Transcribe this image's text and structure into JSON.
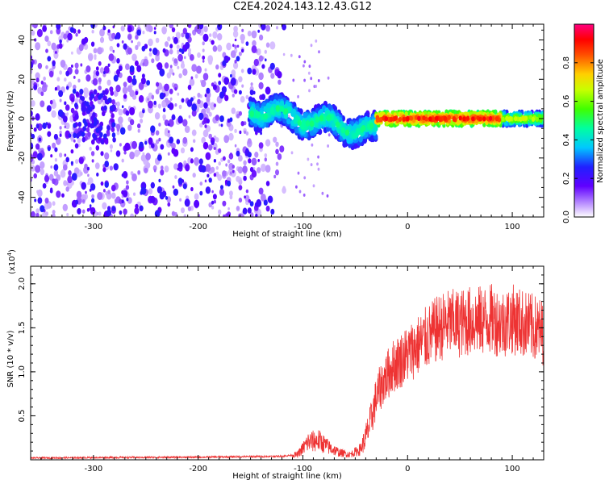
{
  "title": "C2E4.2024.143.12.43.G12",
  "colors": {
    "snr_line": "#ee3333",
    "spectrogram_base": "#7a2cff",
    "frame": "#000000"
  },
  "chart_data": [
    {
      "type": "heatmap",
      "title": "C2E4.2024.143.12.43.G12",
      "xlabel": "Height of straight line (km)",
      "ylabel": "Frequency (Hz)",
      "xlim": [
        -360,
        130
      ],
      "ylim": [
        -50,
        48
      ],
      "x_ticks": [
        "-300",
        "-200",
        "-100",
        "0",
        "100"
      ],
      "y_ticks": [
        "-40",
        "-20",
        "0",
        "20",
        "40"
      ],
      "colorbar": {
        "label": "Normalized spectral amplitude",
        "range": [
          0,
          1
        ],
        "ticks": [
          "0.0",
          "0.2",
          "0.4",
          "0.6",
          "0.8"
        ],
        "colormap": [
          "#ffffff",
          "#8000ff",
          "#2020ff",
          "#00c8ff",
          "#00ff80",
          "#80ff00",
          "#ffd000",
          "#ff5000",
          "#ff0000",
          "#ff0080"
        ]
      },
      "features": [
        {
          "name": "broadband noise region",
          "x_range": [
            -360,
            -115
          ],
          "freq_range": [
            -50,
            48
          ],
          "amplitude": 0.15
        },
        {
          "name": "diffuse doppler track",
          "x_range": [
            -150,
            -30
          ],
          "freq_center": [
            5,
            -8
          ],
          "amplitude": 0.4
        },
        {
          "name": "carrier line",
          "x_range": [
            -30,
            130
          ],
          "freq_center": 0,
          "amplitude": 0.9
        }
      ]
    },
    {
      "type": "line",
      "xlabel": "Height of straight line (km)",
      "ylabel": "SNR (10 * v/v)",
      "y_multiplier_label": "(x10",
      "y_multiplier_exp": "4",
      "y_multiplier_tail": ")",
      "xlim": [
        -360,
        130
      ],
      "ylim": [
        0,
        2.2
      ],
      "x_ticks": [
        "-300",
        "-200",
        "-100",
        "0",
        "100"
      ],
      "y_ticks": [
        "0.5",
        "1.0",
        "1.5",
        "2.0"
      ],
      "series_envelope": {
        "x": [
          -360,
          -300,
          -200,
          -120,
          -105,
          -95,
          -85,
          -75,
          -65,
          -55,
          -45,
          -40,
          -35,
          -30,
          -25,
          -20,
          -15,
          -10,
          -5,
          0,
          10,
          20,
          30,
          40,
          50,
          60,
          70,
          80,
          90,
          100,
          110,
          120,
          130
        ],
        "y": [
          0.02,
          0.025,
          0.03,
          0.04,
          0.06,
          0.2,
          0.22,
          0.14,
          0.08,
          0.06,
          0.12,
          0.25,
          0.45,
          0.7,
          0.85,
          0.95,
          1.05,
          1.1,
          1.15,
          1.2,
          1.3,
          1.4,
          1.5,
          1.55,
          1.55,
          1.58,
          1.58,
          1.6,
          1.55,
          1.6,
          1.55,
          1.5,
          1.45
        ]
      }
    }
  ]
}
